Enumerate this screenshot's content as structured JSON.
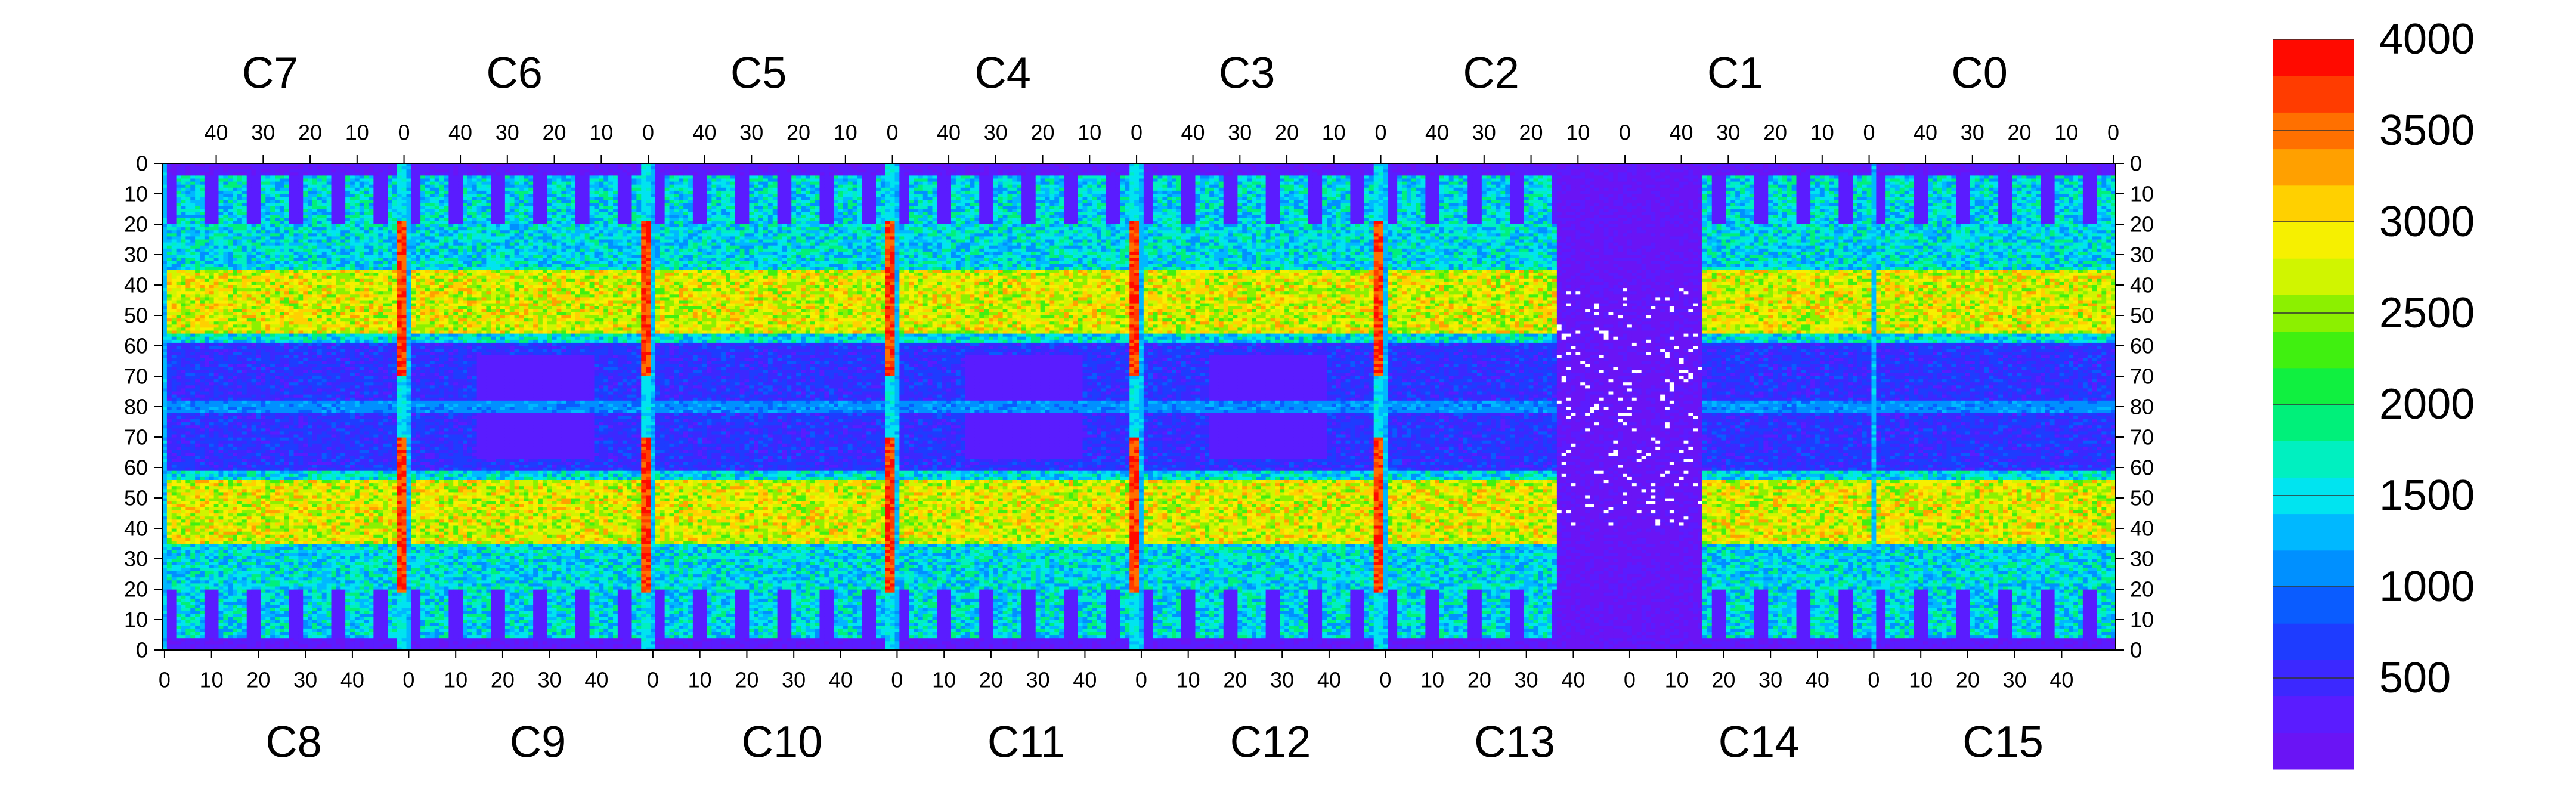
{
  "chart_data": {
    "type": "heatmap",
    "title": "",
    "xlabel": "",
    "ylabel": "",
    "top_chips": [
      "C7",
      "C6",
      "C5",
      "C4",
      "C3",
      "C2",
      "C1",
      "C0"
    ],
    "bottom_chips": [
      "C8",
      "C9",
      "C10",
      "C11",
      "C12",
      "C13",
      "C14",
      "C15"
    ],
    "top_x_ticks": [
      "40",
      "30",
      "20",
      "10",
      "0"
    ],
    "bottom_x_ticks": [
      "0",
      "10",
      "20",
      "30",
      "40"
    ],
    "left_y_ticks": [
      "0",
      "10",
      "20",
      "30",
      "40",
      "50",
      "60",
      "70",
      "80",
      "70",
      "60",
      "50",
      "40",
      "30",
      "20",
      "10",
      "0"
    ],
    "right_y_ticks": [
      "0",
      "10",
      "20",
      "30",
      "40",
      "50",
      "60",
      "70",
      "80",
      "70",
      "60",
      "50",
      "40",
      "30",
      "20",
      "10",
      "0"
    ],
    "colorbar": {
      "min": 0,
      "max": 4000,
      "tick_values": [
        500,
        1000,
        1500,
        2000,
        2500,
        3000,
        3500,
        4000
      ],
      "tick_labels": [
        "500",
        "1000",
        "1500",
        "2000",
        "2500",
        "3000",
        "3500",
        "4000"
      ]
    },
    "columns_per_chip": 52,
    "rows_per_half": 80,
    "approx_levels": {
      "background_low": 200,
      "chip_mid": 1500,
      "bright_band": 2800,
      "edge_column_hot": 3700,
      "sparse_empty": 0
    },
    "colors": {
      "palette": [
        "#6a14f5",
        "#5a1cff",
        "#3c28ff",
        "#1e3cff",
        "#0a5cff",
        "#0090ff",
        "#00b8ff",
        "#00e4f0",
        "#00f0c0",
        "#00f07a",
        "#10f040",
        "#40f010",
        "#8cf000",
        "#d0f500",
        "#f6f000",
        "#ffd000",
        "#ffa000",
        "#ff7000",
        "#ff3c00",
        "#ff0a00"
      ],
      "empty": "#ffffff"
    }
  }
}
